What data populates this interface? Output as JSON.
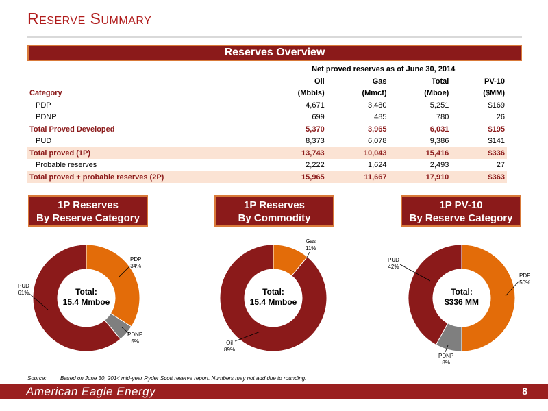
{
  "title": "Reserve Summary",
  "overview_banner": "Reserves Overview",
  "table": {
    "caption": "Net proved reserves as of June 30, 2014",
    "header_top": [
      "Oil",
      "Gas",
      "Total",
      "PV-10"
    ],
    "header_bottom": [
      "(Mbbls)",
      "(Mmcf)",
      "(Mboe)",
      "($MM)"
    ],
    "category_label": "Category",
    "rows": [
      {
        "label": "PDP",
        "oil": "4,671",
        "gas": "3,480",
        "total": "5,251",
        "pv10": "$169"
      },
      {
        "label": "PDNP",
        "oil": "699",
        "gas": "485",
        "total": "780",
        "pv10": "26"
      },
      {
        "label": "Total Proved Developed",
        "oil": "5,370",
        "gas": "3,965",
        "total": "6,031",
        "pv10": "$195"
      },
      {
        "label": "PUD",
        "oil": "8,373",
        "gas": "6,078",
        "total": "9,386",
        "pv10": "$141"
      },
      {
        "label": "Total proved (1P)",
        "oil": "13,743",
        "gas": "10,043",
        "total": "15,416",
        "pv10": "$336"
      },
      {
        "label": "Probable reserves",
        "oil": "2,222",
        "gas": "1,624",
        "total": "2,493",
        "pv10": "27"
      },
      {
        "label": "Total proved + probable reserves (2P)",
        "oil": "15,965",
        "gas": "11,667",
        "total": "17,910",
        "pv10": "$363"
      }
    ]
  },
  "panels": [
    {
      "line1": "1P Reserves",
      "line2": "By Reserve Category",
      "center1": "Total:",
      "center2": "15.4 Mmboe",
      "slices": [
        {
          "name": "PDP",
          "pct": "34%",
          "value": 34,
          "color": "#e36c09"
        },
        {
          "name": "PDNP",
          "pct": "5%",
          "value": 5,
          "color": "#7f7f7f"
        },
        {
          "name": "PUD",
          "pct": "61%",
          "value": 61,
          "color": "#8b1a1a"
        }
      ]
    },
    {
      "line1": "1P Reserves",
      "line2": "By Commodity",
      "center1": "Total:",
      "center2": "15.4 Mmboe",
      "slices": [
        {
          "name": "Gas",
          "pct": "11%",
          "value": 11,
          "color": "#e36c09"
        },
        {
          "name": "Oil",
          "pct": "89%",
          "value": 89,
          "color": "#8b1a1a"
        }
      ]
    },
    {
      "line1": "1P PV-10",
      "line2": "By Reserve Category",
      "center1": "Total:",
      "center2": "$336 MM",
      "slices": [
        {
          "name": "PDP",
          "pct": "50%",
          "value": 50,
          "color": "#e36c09"
        },
        {
          "name": "PDNP",
          "pct": "8%",
          "value": 8,
          "color": "#7f7f7f"
        },
        {
          "name": "PUD",
          "pct": "42%",
          "value": 42,
          "color": "#8b1a1a"
        }
      ]
    }
  ],
  "source_key": "Source:",
  "source_text": "Based on June 30, 2014 mid-year Ryder Scott reserve report. Numbers may not add due to rounding.",
  "footer_brand": "American Eagle Energy",
  "page_number": "8"
}
